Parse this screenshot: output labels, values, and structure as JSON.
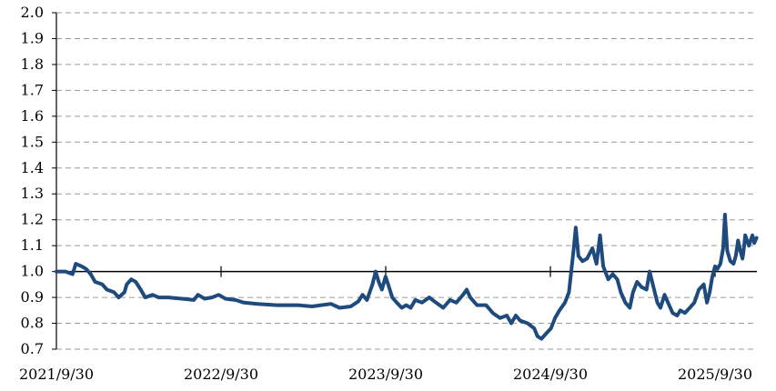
{
  "chart_data": {
    "type": "line",
    "title": "",
    "xlabel": "",
    "ylabel": "",
    "ylim": [
      0.7,
      2.0
    ],
    "yticks": [
      "2.0",
      "1.9",
      "1.8",
      "1.7",
      "1.6",
      "1.5",
      "1.4",
      "1.3",
      "1.2",
      "1.1",
      "1.0",
      "0.9",
      "0.8",
      "0.7"
    ],
    "y_tick_values": [
      2.0,
      1.9,
      1.8,
      1.7,
      1.6,
      1.5,
      1.4,
      1.3,
      1.2,
      1.1,
      1.0,
      0.9,
      0.8,
      0.7
    ],
    "xticks": [
      "2021/9/30",
      "2022/9/30",
      "2023/9/30",
      "2024/9/30",
      "2025/9/30"
    ],
    "xlim": [
      "2021-09-30",
      "2025-12-31"
    ],
    "reference_line": 1.0,
    "grid": true,
    "colors": {
      "series": "#1f4a7e",
      "grid": "#9a9a9a",
      "axis": "#000000"
    },
    "series": [
      {
        "name": "",
        "points": [
          [
            "2021-09-30",
            1.0
          ],
          [
            "2021-10-20",
            1.0
          ],
          [
            "2021-11-05",
            0.99
          ],
          [
            "2021-11-12",
            1.03
          ],
          [
            "2021-11-25",
            1.02
          ],
          [
            "2021-12-05",
            1.01
          ],
          [
            "2021-12-15",
            0.99
          ],
          [
            "2021-12-25",
            0.96
          ],
          [
            "2022-01-10",
            0.95
          ],
          [
            "2022-01-20",
            0.93
          ],
          [
            "2022-02-05",
            0.92
          ],
          [
            "2022-02-15",
            0.9
          ],
          [
            "2022-02-28",
            0.92
          ],
          [
            "2022-03-05",
            0.95
          ],
          [
            "2022-03-15",
            0.97
          ],
          [
            "2022-03-25",
            0.96
          ],
          [
            "2022-04-05",
            0.93
          ],
          [
            "2022-04-15",
            0.9
          ],
          [
            "2022-05-01",
            0.91
          ],
          [
            "2022-05-15",
            0.9
          ],
          [
            "2022-06-05",
            0.9
          ],
          [
            "2022-07-05",
            0.895
          ],
          [
            "2022-08-01",
            0.89
          ],
          [
            "2022-08-10",
            0.91
          ],
          [
            "2022-08-25",
            0.895
          ],
          [
            "2022-09-10",
            0.9
          ],
          [
            "2022-09-25",
            0.91
          ],
          [
            "2022-10-10",
            0.895
          ],
          [
            "2022-11-01",
            0.89
          ],
          [
            "2022-11-20",
            0.88
          ],
          [
            "2022-12-20",
            0.875
          ],
          [
            "2023-02-01",
            0.87
          ],
          [
            "2023-03-20",
            0.87
          ],
          [
            "2023-04-20",
            0.865
          ],
          [
            "2023-05-10",
            0.87
          ],
          [
            "2023-06-01",
            0.875
          ],
          [
            "2023-06-20",
            0.86
          ],
          [
            "2023-07-15",
            0.865
          ],
          [
            "2023-08-01",
            0.885
          ],
          [
            "2023-08-10",
            0.91
          ],
          [
            "2023-08-20",
            0.89
          ],
          [
            "2023-09-01",
            0.95
          ],
          [
            "2023-09-08",
            1.0
          ],
          [
            "2023-09-15",
            0.96
          ],
          [
            "2023-09-22",
            0.93
          ],
          [
            "2023-09-30",
            0.98
          ],
          [
            "2023-10-06",
            0.95
          ],
          [
            "2023-10-15",
            0.9
          ],
          [
            "2023-10-25",
            0.88
          ],
          [
            "2023-11-05",
            0.86
          ],
          [
            "2023-11-15",
            0.87
          ],
          [
            "2023-11-25",
            0.86
          ],
          [
            "2023-12-05",
            0.89
          ],
          [
            "2023-12-20",
            0.88
          ],
          [
            "2024-01-05",
            0.9
          ],
          [
            "2024-01-20",
            0.88
          ],
          [
            "2024-02-05",
            0.86
          ],
          [
            "2024-02-20",
            0.89
          ],
          [
            "2024-03-05",
            0.88
          ],
          [
            "2024-03-20",
            0.91
          ],
          [
            "2024-03-28",
            0.93
          ],
          [
            "2024-04-05",
            0.9
          ],
          [
            "2024-04-20",
            0.87
          ],
          [
            "2024-05-10",
            0.87
          ],
          [
            "2024-05-25",
            0.84
          ],
          [
            "2024-06-10",
            0.82
          ],
          [
            "2024-06-25",
            0.83
          ],
          [
            "2024-07-05",
            0.8
          ],
          [
            "2024-07-15",
            0.83
          ],
          [
            "2024-07-25",
            0.81
          ],
          [
            "2024-08-10",
            0.8
          ],
          [
            "2024-08-25",
            0.78
          ],
          [
            "2024-09-01",
            0.75
          ],
          [
            "2024-09-10",
            0.74
          ],
          [
            "2024-09-20",
            0.76
          ],
          [
            "2024-10-01",
            0.78
          ],
          [
            "2024-10-10",
            0.82
          ],
          [
            "2024-10-20",
            0.85
          ],
          [
            "2024-11-01",
            0.88
          ],
          [
            "2024-11-10",
            0.92
          ],
          [
            "2024-11-15",
            1.0
          ],
          [
            "2024-11-20",
            1.08
          ],
          [
            "2024-11-25",
            1.17
          ],
          [
            "2024-12-01",
            1.06
          ],
          [
            "2024-12-10",
            1.04
          ],
          [
            "2024-12-20",
            1.05
          ],
          [
            "2025-01-01",
            1.09
          ],
          [
            "2025-01-10",
            1.03
          ],
          [
            "2025-01-18",
            1.14
          ],
          [
            "2025-01-25",
            1.02
          ],
          [
            "2025-02-05",
            0.97
          ],
          [
            "2025-02-15",
            0.99
          ],
          [
            "2025-02-25",
            0.97
          ],
          [
            "2025-03-05",
            0.92
          ],
          [
            "2025-03-15",
            0.88
          ],
          [
            "2025-03-25",
            0.86
          ],
          [
            "2025-04-01",
            0.92
          ],
          [
            "2025-04-10",
            0.96
          ],
          [
            "2025-04-20",
            0.94
          ],
          [
            "2025-05-01",
            0.93
          ],
          [
            "2025-05-08",
            1.0
          ],
          [
            "2025-05-15",
            0.95
          ],
          [
            "2025-05-25",
            0.88
          ],
          [
            "2025-06-01",
            0.86
          ],
          [
            "2025-06-10",
            0.91
          ],
          [
            "2025-06-20",
            0.87
          ],
          [
            "2025-06-28",
            0.84
          ],
          [
            "2025-07-08",
            0.83
          ],
          [
            "2025-07-15",
            0.85
          ],
          [
            "2025-07-25",
            0.84
          ],
          [
            "2025-08-05",
            0.86
          ],
          [
            "2025-08-15",
            0.88
          ],
          [
            "2025-08-25",
            0.93
          ],
          [
            "2025-09-05",
            0.95
          ],
          [
            "2025-09-12",
            0.88
          ],
          [
            "2025-09-18",
            0.92
          ],
          [
            "2025-09-24",
            0.98
          ],
          [
            "2025-09-30",
            1.02
          ],
          [
            "2025-10-05",
            1.01
          ],
          [
            "2025-10-12",
            1.03
          ],
          [
            "2025-10-18",
            1.09
          ],
          [
            "2025-10-22",
            1.22
          ],
          [
            "2025-10-27",
            1.08
          ],
          [
            "2025-11-03",
            1.04
          ],
          [
            "2025-11-10",
            1.03
          ],
          [
            "2025-11-15",
            1.06
          ],
          [
            "2025-11-20",
            1.12
          ],
          [
            "2025-11-25",
            1.08
          ],
          [
            "2025-11-30",
            1.05
          ],
          [
            "2025-12-03",
            1.09
          ],
          [
            "2025-12-06",
            1.14
          ],
          [
            "2025-12-10",
            1.12
          ],
          [
            "2025-12-14",
            1.1
          ],
          [
            "2025-12-18",
            1.12
          ],
          [
            "2025-12-22",
            1.14
          ],
          [
            "2025-12-26",
            1.11
          ],
          [
            "2025-12-31",
            1.13
          ]
        ]
      }
    ]
  }
}
